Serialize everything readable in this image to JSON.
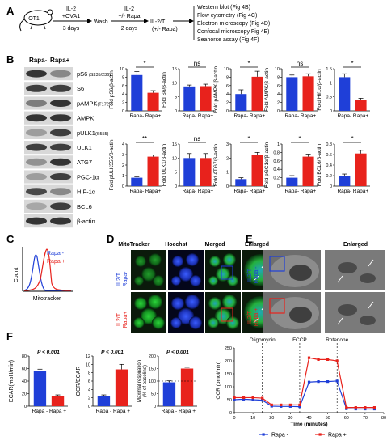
{
  "colors": {
    "blue": "#1f3fd8",
    "red": "#e8221c",
    "cell_bg": "#0b1a0b",
    "em_bg": "#6e6e6e"
  },
  "panel_labels": [
    "A",
    "B",
    "C",
    "D",
    "E",
    "F"
  ],
  "a": {
    "mouse": "OT1",
    "steps": [
      {
        "top": "IL-2",
        "top2": "+OVA1",
        "bottom": "3 days"
      },
      {
        "top": "Wash",
        "top2": "",
        "bottom": ""
      },
      {
        "top": "IL-2",
        "top2": "+/- Rapa",
        "bottom": "2 days"
      },
      {
        "top": "IL-2/T",
        "top2": "",
        "bottom": "(+/- Rapa)"
      }
    ],
    "assays": [
      "Western blot (Fig 4B)",
      "Flow cytometry (Fig 4C)",
      "Electron microscopy (Fig 4D)",
      "Confocal microscopy Fig 4E)",
      "Seahorse assay (Fig 4F)"
    ]
  },
  "b": {
    "blot_headers": [
      "Rapa-",
      "Rapa+"
    ],
    "blot_rows": [
      {
        "label": "pS6",
        "suffix": " (S235/236)",
        "left": 0.85,
        "right": 0.45
      },
      {
        "label": "S6",
        "suffix": "",
        "left": 0.8,
        "right": 0.8
      },
      {
        "label": "pAMPK",
        "suffix": "(T172)",
        "left": 0.5,
        "right": 0.85
      },
      {
        "label": "AMPK",
        "suffix": "",
        "left": 0.85,
        "right": 0.85
      },
      {
        "label": "pULK1",
        "suffix": "(S555)",
        "left": 0.35,
        "right": 0.8
      },
      {
        "label": "ULK1",
        "suffix": "",
        "left": 0.8,
        "right": 0.8
      },
      {
        "label": "ATG7",
        "suffix": "",
        "left": 0.4,
        "right": 0.85
      },
      {
        "label": "PGC-1α",
        "suffix": "",
        "left": 0.35,
        "right": 0.8
      },
      {
        "label": "HIF-1α",
        "suffix": "",
        "left": 0.75,
        "right": 0.45
      },
      {
        "label": "BCL6",
        "suffix": "",
        "left": 0.3,
        "right": 0.8
      },
      {
        "label": "β-actin",
        "suffix": "",
        "left": 0.85,
        "right": 0.85
      }
    ]
  },
  "chart_data": [
    {
      "type": "bar",
      "ylabel": "Fold pS6/β-actin",
      "categories": [
        "Rapa-",
        "Rapa+"
      ],
      "values": [
        8.5,
        4.3
      ],
      "errors": [
        0.8,
        0.5
      ],
      "ylim": [
        0,
        10
      ],
      "yticks": [
        0,
        2,
        4,
        6,
        8,
        10
      ],
      "sig": "*"
    },
    {
      "type": "bar",
      "ylabel": "Fold S6/β-actin",
      "categories": [
        "Rapa-",
        "Rapa+"
      ],
      "values": [
        8.7,
        8.8
      ],
      "errors": [
        0.5,
        0.7
      ],
      "ylim": [
        0,
        15
      ],
      "yticks": [
        0,
        5,
        10,
        15
      ],
      "sig": "ns"
    },
    {
      "type": "bar",
      "ylabel": "Fold pAMPK/β-actin",
      "categories": [
        "Rapa-",
        "Rapa+"
      ],
      "values": [
        4.0,
        8.1
      ],
      "errors": [
        1.0,
        1.3
      ],
      "ylim": [
        0,
        10
      ],
      "yticks": [
        0,
        2,
        4,
        6,
        8,
        10
      ],
      "sig": "*"
    },
    {
      "type": "bar",
      "ylabel": "Fold AMPK/β-actin",
      "categories": [
        "Rapa-",
        "Rapa+"
      ],
      "values": [
        8.0,
        8.2
      ],
      "errors": [
        0.5,
        0.6
      ],
      "ylim": [
        0,
        10
      ],
      "yticks": [
        0,
        2,
        4,
        6,
        8,
        10
      ],
      "sig": "ns"
    },
    {
      "type": "bar",
      "ylabel": "Fold Hif1α/β-actin",
      "categories": [
        "Rapa-",
        "Rapa+"
      ],
      "values": [
        1.2,
        0.4
      ],
      "errors": [
        0.12,
        0.05
      ],
      "ylim": [
        0,
        1.5
      ],
      "yticks": [
        0,
        0.5,
        1.0,
        1.5
      ],
      "sig": "*"
    },
    {
      "type": "bar",
      "ylabel": "Fold pULK555/β-actin",
      "categories": [
        "Rapa-",
        "Rapa+"
      ],
      "values": [
        0.8,
        2.8
      ],
      "errors": [
        0.1,
        0.15
      ],
      "ylim": [
        0,
        4
      ],
      "yticks": [
        0,
        1,
        2,
        3,
        4
      ],
      "sig": "**"
    },
    {
      "type": "bar",
      "ylabel": "Fold ULK1/β-actin",
      "categories": [
        "Rapa-",
        "Rapa+"
      ],
      "values": [
        10,
        10
      ],
      "errors": [
        1.6,
        1.6
      ],
      "ylim": [
        0,
        15
      ],
      "yticks": [
        0,
        5,
        10,
        15
      ],
      "sig": "ns"
    },
    {
      "type": "bar",
      "ylabel": "Fold ATG7/β-actin",
      "categories": [
        "Rapa-",
        "Rapa+"
      ],
      "values": [
        0.5,
        2.2
      ],
      "errors": [
        0.1,
        0.2
      ],
      "ylim": [
        0,
        3
      ],
      "yticks": [
        0,
        1,
        2,
        3
      ],
      "sig": "*"
    },
    {
      "type": "bar",
      "ylabel": "Fold pGC1α/β-actin",
      "categories": [
        "Rapa-",
        "Rapa+"
      ],
      "values": [
        0.2,
        0.7
      ],
      "errors": [
        0.05,
        0.06
      ],
      "ylim": [
        0,
        1.0
      ],
      "yticks": [
        0,
        0.2,
        0.4,
        0.6,
        0.8,
        1.0
      ],
      "sig": "*"
    },
    {
      "type": "bar",
      "ylabel": "Fold BCL6/β-actin",
      "categories": [
        "Rapa-",
        "Rapa+"
      ],
      "values": [
        0.2,
        0.62
      ],
      "errors": [
        0.03,
        0.06
      ],
      "ylim": [
        0,
        0.8
      ],
      "yticks": [
        0,
        0.2,
        0.4,
        0.6,
        0.8
      ],
      "sig": "*"
    },
    {
      "type": "bar",
      "ylabel": "ECAR(mpH/min)",
      "categories": [
        "Rapa -",
        "Rapa +"
      ],
      "values": [
        56,
        16
      ],
      "errors": [
        3,
        2
      ],
      "ylim": [
        0,
        80
      ],
      "yticks": [
        0,
        20,
        40,
        60,
        80
      ],
      "sig": "P < 0.001"
    },
    {
      "type": "bar",
      "ylabel": "OCR/ECAR",
      "categories": [
        "Rapa -",
        "Rapa +"
      ],
      "values": [
        2.5,
        8.8
      ],
      "errors": [
        0.2,
        1.2
      ],
      "ylim": [
        0,
        12
      ],
      "yticks": [
        0,
        2,
        4,
        6,
        8,
        10,
        12
      ],
      "sig": "P < 0.001"
    },
    {
      "type": "bar",
      "ylabel": "Maximal respiration (% of baseline)",
      "categories": [
        "Rapa -",
        "Rapa +"
      ],
      "values": [
        95,
        150
      ],
      "errors": [
        6,
        5
      ],
      "ylim": [
        0,
        200
      ],
      "yticks": [
        0,
        50,
        100,
        150,
        200
      ],
      "sig": "P < 0.001",
      "ref": 100
    },
    {
      "type": "line",
      "xlabel": "Time (minutes)",
      "ylabel": "OCR (pmol/min)",
      "x": [
        0,
        5,
        10,
        15,
        20,
        25,
        30,
        35,
        40,
        45,
        50,
        55,
        60,
        65,
        70,
        75
      ],
      "xlim": [
        0,
        80
      ],
      "xticks": [
        0,
        10,
        20,
        30,
        40,
        50,
        60,
        70,
        80
      ],
      "ylim": [
        0,
        250
      ],
      "yticks": [
        0,
        50,
        100,
        150,
        200,
        250
      ],
      "annotations": [
        {
          "text": "Oligomycin",
          "x": 15
        },
        {
          "text": "FCCP",
          "x": 35
        },
        {
          "text": "Rotenone",
          "x": 55
        }
      ],
      "series": [
        {
          "name": "Rapa -",
          "values": [
            50,
            52,
            50,
            48,
            25,
            24,
            24,
            23,
            118,
            120,
            120,
            122,
            15,
            14,
            14,
            14
          ]
        },
        {
          "name": "Rapa +",
          "values": [
            58,
            58,
            58,
            56,
            30,
            30,
            30,
            30,
            212,
            205,
            205,
            200,
            20,
            20,
            20,
            20
          ]
        }
      ]
    }
  ],
  "c": {
    "legend": [
      "Rapa -",
      "Rapa +"
    ],
    "ylabel": "Count",
    "xlabel": "Mitotracker"
  },
  "d": {
    "headers": [
      "MitoTracker",
      "Hoechst",
      "Merged",
      "Enlarged"
    ],
    "row_labels": [
      {
        "l1": "IL2/T",
        "l2": "Rapa-"
      },
      {
        "l1": "IL2/T",
        "l2": "Rapa+"
      }
    ]
  },
  "e": {
    "header": "Enlarged",
    "row_labels": [
      {
        "l1": "IL2/T",
        "l2": "Rapa -"
      },
      {
        "l1": "IL2/T",
        "l2": "Rapa +"
      }
    ]
  }
}
